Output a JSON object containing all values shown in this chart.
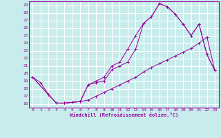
{
  "xlabel": "Windchill (Refroidissement éolien,°C)",
  "background_color": "#c8ecec",
  "line_color": "#990099",
  "grid_color": "#ffffff",
  "xlim": [
    -0.5,
    23.5
  ],
  "ylim": [
    15.5,
    29.5
  ],
  "x_ticks": [
    0,
    1,
    2,
    3,
    4,
    5,
    6,
    7,
    8,
    9,
    10,
    11,
    12,
    13,
    14,
    15,
    16,
    17,
    18,
    19,
    20,
    21,
    22,
    23
  ],
  "y_ticks": [
    16,
    17,
    18,
    19,
    20,
    21,
    22,
    23,
    24,
    25,
    26,
    27,
    28,
    29
  ],
  "line1_x": [
    0,
    1,
    2,
    3,
    4,
    5,
    6,
    7,
    8,
    9,
    10,
    11,
    12,
    13,
    14,
    15,
    16,
    17,
    18,
    19,
    20,
    21,
    22,
    23
  ],
  "line1_y": [
    19.5,
    18.8,
    17.2,
    16.1,
    16.1,
    16.2,
    16.3,
    18.5,
    19.0,
    19.5,
    21.0,
    21.5,
    23.2,
    25.0,
    26.6,
    27.5,
    29.2,
    28.8,
    27.8,
    26.5,
    25.0,
    26.5,
    22.5,
    20.4
  ],
  "line2_x": [
    0,
    2,
    3,
    4,
    5,
    6,
    7,
    8,
    9,
    10,
    11,
    12,
    13,
    14,
    15,
    16,
    17,
    18,
    19,
    20,
    21,
    22,
    23
  ],
  "line2_y": [
    19.5,
    17.2,
    16.1,
    16.1,
    16.2,
    16.3,
    18.5,
    18.8,
    19.0,
    20.5,
    21.0,
    21.5,
    23.2,
    26.6,
    27.5,
    29.2,
    28.8,
    27.8,
    26.5,
    25.0,
    26.5,
    22.5,
    20.4
  ],
  "line3_x": [
    0,
    2,
    3,
    4,
    5,
    6,
    7,
    8,
    9,
    10,
    11,
    12,
    13,
    14,
    15,
    16,
    17,
    18,
    19,
    20,
    21,
    22,
    23
  ],
  "line3_y": [
    19.5,
    17.2,
    16.1,
    16.1,
    16.2,
    16.3,
    16.5,
    17.0,
    17.5,
    18.0,
    18.5,
    19.0,
    19.5,
    20.2,
    20.8,
    21.3,
    21.8,
    22.3,
    22.8,
    23.3,
    24.0,
    24.8,
    20.4
  ]
}
